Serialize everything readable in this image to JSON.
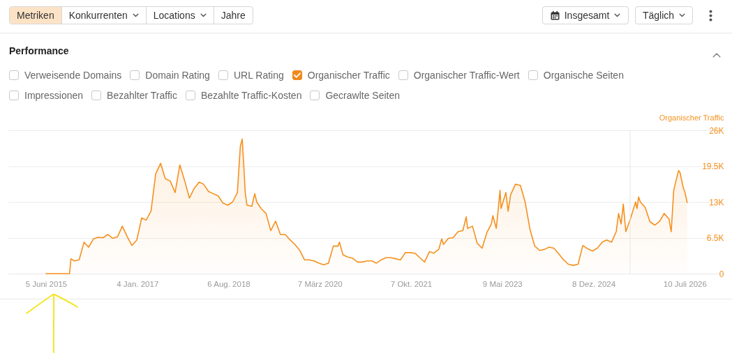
{
  "chart_data": {
    "type": "area",
    "title": "Performance",
    "ylabel": "Organischer Traffic",
    "color": "#f5901e",
    "x": [
      "2015-06-05",
      "2015-07",
      "2015-08",
      "2015-09",
      "2015-10",
      "2015-11",
      "2015-11-10",
      "2015-12",
      "2016-01",
      "2016-02",
      "2016-03",
      "2016-04",
      "2016-05",
      "2016-06",
      "2016-07",
      "2016-08",
      "2016-09",
      "2016-10",
      "2016-11",
      "2016-12",
      "2017-01",
      "2017-02",
      "2017-03",
      "2017-04",
      "2017-05",
      "2017-06",
      "2017-07",
      "2017-08",
      "2017-09",
      "2017-10",
      "2017-11",
      "2017-12",
      "2018-01",
      "2018-02",
      "2018-03",
      "2018-04",
      "2018-05",
      "2018-06",
      "2018-07",
      "2018-08",
      "2018-09",
      "2018-10",
      "2018-10-20",
      "2018-11",
      "2018-11-12",
      "2018-11-20",
      "2018-12",
      "2019-01",
      "2019-01-19",
      "2019-02",
      "2019-03",
      "2019-04",
      "2019-05",
      "2019-06",
      "2019-07",
      "2019-08",
      "2019-09",
      "2019-10",
      "2019-11",
      "2019-12",
      "2020-01",
      "2020-02",
      "2020-03",
      "2020-04",
      "2020-05",
      "2020-06",
      "2020-07",
      "2020-07-10",
      "2020-08",
      "2020-09",
      "2020-10",
      "2020-11",
      "2020-12",
      "2021-01",
      "2021-02",
      "2021-03",
      "2021-04",
      "2021-05",
      "2021-06",
      "2021-07",
      "2021-08",
      "2021-09",
      "2021-10",
      "2021-11",
      "2021-12",
      "2022-01",
      "2022-02",
      "2022-03",
      "2022-04",
      "2022-04-20",
      "2022-05",
      "2022-06",
      "2022-07",
      "2022-08",
      "2022-09",
      "2022-09-22",
      "2022-10",
      "2022-11",
      "2022-12",
      "2023-01",
      "2023-02",
      "2023-03",
      "2023-03-10",
      "2023-04",
      "2023-04-25",
      "2023-05",
      "2023-06",
      "2023-06-15",
      "2023-07",
      "2023-08",
      "2023-09",
      "2023-10",
      "2023-11",
      "2023-12",
      "2024-01",
      "2024-02",
      "2024-03",
      "2024-04",
      "2024-05",
      "2024-06",
      "2024-07",
      "2024-08",
      "2024-09",
      "2024-10",
      "2024-11",
      "2024-12",
      "2025-01",
      "2025-02",
      "2025-03",
      "2025-04",
      "2025-05",
      "2025-05-16",
      "2025-06",
      "2025-06-15",
      "2025-07",
      "2025-08",
      "2025-09",
      "2025-09-10",
      "2025-09-20",
      "2025-10",
      "2025-11",
      "2025-12",
      "2026-01",
      "2026-02",
      "2026-03",
      "2026-04",
      "2026-04-15",
      "2026-05",
      "2026-05-15",
      "2026-06",
      "2026-06-10",
      "2026-07",
      "2026-07-10",
      "2026-07-25"
    ],
    "values": [
      0,
      0,
      0,
      0,
      0,
      0,
      2700,
      2300,
      2500,
      5700,
      4800,
      6300,
      6600,
      6500,
      7100,
      6400,
      6700,
      8600,
      6700,
      5100,
      6100,
      10100,
      9700,
      11300,
      18100,
      20000,
      17200,
      16800,
      14700,
      19700,
      16800,
      13700,
      15500,
      16600,
      16200,
      14900,
      14500,
      14100,
      12800,
      12400,
      13000,
      14700,
      23100,
      24400,
      18900,
      14700,
      12400,
      12200,
      14500,
      13000,
      11800,
      10900,
      7800,
      9500,
      7100,
      7100,
      6100,
      5300,
      4200,
      2500,
      2500,
      2300,
      1900,
      1600,
      1900,
      5000,
      5000,
      5700,
      3400,
      3000,
      2800,
      2100,
      2100,
      2300,
      2300,
      1900,
      2500,
      2900,
      2900,
      2700,
      2500,
      3800,
      3800,
      3700,
      2900,
      2100,
      4000,
      3700,
      4400,
      6300,
      5300,
      6400,
      6500,
      7600,
      7800,
      10300,
      8200,
      8600,
      5500,
      4600,
      7500,
      9000,
      10500,
      8200,
      15100,
      11800,
      14700,
      11300,
      14300,
      16200,
      16000,
      13000,
      8000,
      5000,
      4200,
      4400,
      4800,
      4600,
      3600,
      2500,
      1700,
      1500,
      1700,
      5100,
      4500,
      4100,
      4600,
      5700,
      6100,
      5700,
      7600,
      10900,
      9000,
      12600,
      7600,
      10100,
      13000,
      11800,
      13900,
      13000,
      12000,
      9400,
      8800,
      9500,
      10900,
      9900,
      7600,
      15100,
      16800,
      18700,
      18300,
      15500,
      14900,
      12900
    ],
    "xlim": [
      "2014-10-09",
      "2027-03-18"
    ],
    "xticks": [
      {
        "value": "2015-06-05",
        "label": "5 Juni 2015"
      },
      {
        "value": "2017-01-04",
        "label": "4 Jan. 2017"
      },
      {
        "value": "2018-08-06",
        "label": "6 Aug. 2018"
      },
      {
        "value": "2020-03-07",
        "label": "7 März 2020"
      },
      {
        "value": "2021-10-07",
        "label": "7 Okt. 2021"
      },
      {
        "value": "2023-05-09",
        "label": "9 Mai 2023"
      },
      {
        "value": "2024-12-08",
        "label": "8 Dez. 2024"
      },
      {
        "value": "2026-07-10",
        "label": "10 Juli 2026"
      }
    ],
    "ylim": [
      0,
      26000
    ],
    "yticks": [
      0,
      {
        "value": 6500,
        "label": "6.5K"
      },
      {
        "value": 13000,
        "label": "13K"
      },
      {
        "value": 19500,
        "label": "19.5K"
      },
      {
        "value": 26000,
        "label": "26K"
      }
    ],
    "grid": "y",
    "ref_lines": [
      {
        "axis": "x",
        "value": "2025-07-28",
        "color": "#e6e6e6"
      }
    ],
    "annotations": [
      "Metriken",
      "Konkurrenten",
      "Locations",
      "Jahre",
      "Insgesamt",
      "Täglich",
      "Verweisende Domains",
      "Domain Rating",
      "URL Rating",
      "Organischer Traffic",
      "Organischer Traffic-Wert",
      "Organische Seiten",
      "Impressionen",
      "Bezahlter Traffic",
      "Bezahlte Traffic-Kosten",
      "Gecrawlte Seiten"
    ]
  }
}
